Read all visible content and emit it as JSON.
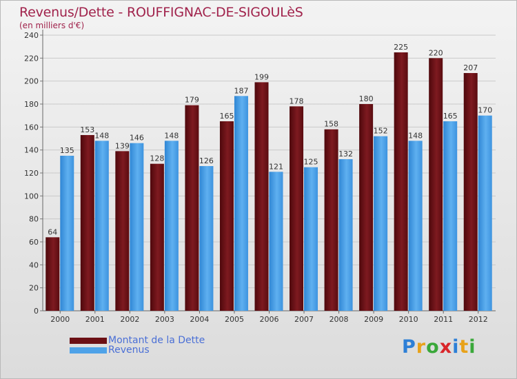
{
  "chart_title": "Revenus/Dette - ROUFFIGNAC-DE-SIGOULèS",
  "chart_subtitle": "(en milliers d'€)",
  "colors": {
    "dette": "#6b0f14",
    "revenus": "#4ea2e8",
    "title": "#a0224b"
  },
  "chart_data": {
    "type": "bar",
    "categories": [
      "2000",
      "2001",
      "2002",
      "2003",
      "2004",
      "2005",
      "2006",
      "2007",
      "2008",
      "2009",
      "2010",
      "2011",
      "2012"
    ],
    "series": [
      {
        "name": "Montant de la Dette",
        "values": [
          64,
          153,
          139,
          128,
          179,
          165,
          199,
          178,
          158,
          180,
          225,
          220,
          207
        ]
      },
      {
        "name": "Revenus",
        "values": [
          135,
          148,
          146,
          148,
          126,
          187,
          121,
          125,
          132,
          152,
          148,
          165,
          170
        ]
      }
    ],
    "ylim": [
      0,
      240
    ],
    "yticks": [
      0,
      20,
      40,
      60,
      80,
      100,
      120,
      140,
      160,
      180,
      200,
      220,
      240
    ],
    "grid": true,
    "legend_position": "bottom-left"
  },
  "legend": {
    "items": [
      {
        "label": "Montant de la Dette",
        "color": "#6b0f14"
      },
      {
        "label": "Revenus",
        "color": "#4ea2e8"
      }
    ]
  },
  "logo": {
    "letters": [
      "P",
      "r",
      "o",
      "x",
      "i",
      "t",
      "i"
    ],
    "colors": [
      "#2d7fd6",
      "#e8a21a",
      "#3aa83a",
      "#d9262a",
      "#2d7fd6",
      "#e8a21a",
      "#3aa83a"
    ]
  }
}
